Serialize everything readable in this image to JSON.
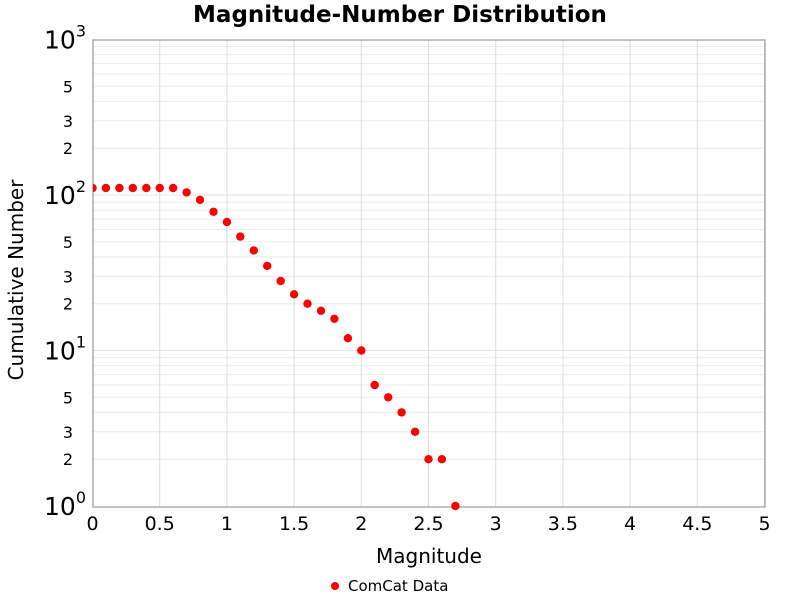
{
  "chart_data": {
    "type": "scatter",
    "title": "Magnitude-Number Distribution",
    "xlabel": "Magnitude",
    "ylabel": "Cumulative Number",
    "xscale": "linear",
    "yscale": "log",
    "xlim": [
      0,
      5
    ],
    "ylim": [
      1,
      1000
    ],
    "grid": true,
    "legend_position": "bottom-center",
    "x_ticks": {
      "values": [
        0,
        0.5,
        1,
        1.5,
        2,
        2.5,
        3,
        3.5,
        4,
        4.5,
        5
      ],
      "labels": [
        "0",
        "0.5",
        "1",
        "1.5",
        "2",
        "2.5",
        "3",
        "3.5",
        "4",
        "4.5",
        "5"
      ]
    },
    "y_ticks": {
      "major": [
        {
          "value": 1000,
          "mantissa": "10",
          "exponent": "3"
        },
        {
          "value": 100,
          "mantissa": "10",
          "exponent": "2"
        },
        {
          "value": 10,
          "mantissa": "10",
          "exponent": "1"
        },
        {
          "value": 1,
          "mantissa": "10",
          "exponent": "0"
        }
      ],
      "minor_labeled": [
        {
          "value": 500,
          "label": "5"
        },
        {
          "value": 300,
          "label": "3"
        },
        {
          "value": 200,
          "label": "2"
        },
        {
          "value": 50,
          "label": "5"
        },
        {
          "value": 30,
          "label": "3"
        },
        {
          "value": 20,
          "label": "2"
        },
        {
          "value": 5,
          "label": "5"
        },
        {
          "value": 3,
          "label": "3"
        },
        {
          "value": 2,
          "label": "2"
        }
      ]
    },
    "series": [
      {
        "name": "ComCat Data",
        "marker": "circle",
        "color": "#ff0000",
        "x": [
          0.0,
          0.1,
          0.2,
          0.3,
          0.4,
          0.5,
          0.6,
          0.7,
          0.8,
          0.9,
          1.0,
          1.1,
          1.2,
          1.3,
          1.4,
          1.5,
          1.6,
          1.7,
          1.8,
          1.9,
          2.0,
          2.1,
          2.2,
          2.3,
          2.4,
          2.5,
          2.6,
          2.7
        ],
        "y": [
          111,
          111,
          111,
          111,
          111,
          111,
          111,
          104,
          93,
          78,
          67,
          54,
          44,
          35,
          28,
          23,
          20,
          18,
          16,
          12,
          10,
          6,
          5,
          4,
          3,
          2,
          2,
          1
        ]
      }
    ]
  },
  "colors": {
    "background": "#ffffff",
    "frame": "#999999",
    "grid_minor": "#ececec",
    "grid_major": "#e3e3e3",
    "grid_vertical": "#dcdcdc",
    "text": "#000000",
    "marker": "#ff0000"
  }
}
